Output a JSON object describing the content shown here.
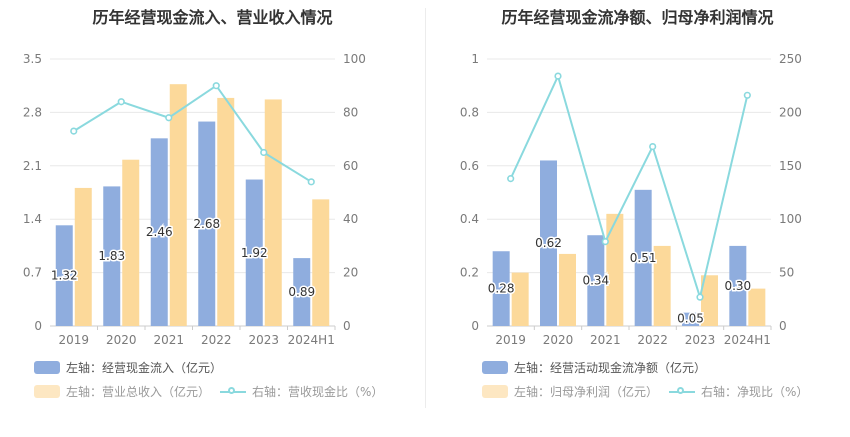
{
  "colors": {
    "cash_bar": "#8fadde",
    "revenue_bar": "#fcd99a",
    "ratio_line": "#8ad9de",
    "axis_text": "#7a7a7a",
    "grid": "#e8e8e8",
    "label_text": "#333333"
  },
  "chart_data": [
    {
      "type": "bar",
      "title": "历年经营现金流入、营业收入情况",
      "categories": [
        "2019",
        "2020",
        "2021",
        "2022",
        "2023",
        "2024H1"
      ],
      "left_axis": {
        "min": 0,
        "max": 3.5,
        "ticks": [
          "0",
          "0.7",
          "1.4",
          "2.1",
          "2.8",
          "3.5"
        ]
      },
      "right_axis": {
        "min": 0,
        "max": 100,
        "ticks": [
          "0",
          "20",
          "40",
          "60",
          "80",
          "100"
        ]
      },
      "series": [
        {
          "name": "左轴：经营现金流入（亿元）",
          "axis": "left",
          "kind": "bar",
          "values": [
            1.32,
            1.83,
            2.46,
            2.68,
            1.92,
            0.89
          ],
          "labels": [
            "1.32",
            "1.83",
            "2.46",
            "2.68",
            "1.92",
            "0.89"
          ]
        },
        {
          "name": "左轴：营业总收入（亿元）",
          "axis": "left",
          "kind": "bar",
          "values": [
            1.81,
            2.18,
            3.17,
            2.99,
            2.97,
            1.66
          ]
        },
        {
          "name": "右轴：营收现金比（%）",
          "axis": "right",
          "kind": "line",
          "values": [
            73,
            84,
            78,
            90,
            65,
            54
          ]
        }
      ],
      "grid": true,
      "legend_position": "bottom"
    },
    {
      "type": "bar",
      "title": "历年经营现金流净额、归母净利润情况",
      "categories": [
        "2019",
        "2020",
        "2021",
        "2022",
        "2023",
        "2024H1"
      ],
      "left_axis": {
        "min": 0,
        "max": 1,
        "ticks": [
          "0",
          "0.2",
          "0.4",
          "0.6",
          "0.8",
          "1"
        ]
      },
      "right_axis": {
        "min": 0,
        "max": 250,
        "ticks": [
          "0",
          "50",
          "100",
          "150",
          "200",
          "250"
        ]
      },
      "series": [
        {
          "name": "左轴：经营活动现金流净额（亿元）",
          "axis": "left",
          "kind": "bar",
          "values": [
            0.28,
            0.62,
            0.34,
            0.51,
            0.05,
            0.3
          ],
          "labels": [
            "0.28",
            "0.62",
            "0.34",
            "0.51",
            "0.05",
            "0.30"
          ]
        },
        {
          "name": "左轴：归母净利润（亿元）",
          "axis": "left",
          "kind": "bar",
          "values": [
            0.2,
            0.27,
            0.42,
            0.3,
            0.19,
            0.14
          ]
        },
        {
          "name": "右轴：净现比（%）",
          "axis": "right",
          "kind": "line",
          "values": [
            138,
            234,
            79,
            168,
            27,
            216
          ]
        }
      ],
      "grid": true,
      "legend_position": "bottom"
    }
  ]
}
